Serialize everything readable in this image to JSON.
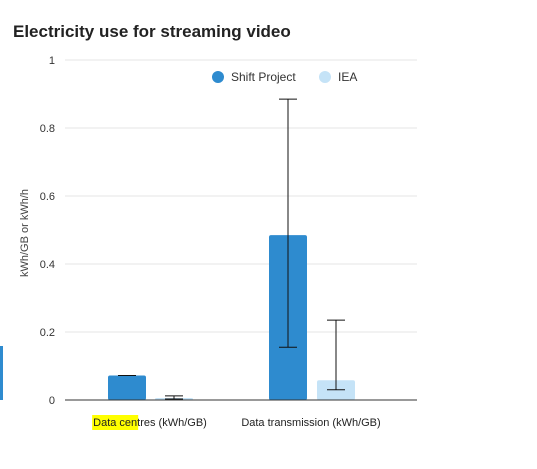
{
  "chart_data": {
    "type": "bar",
    "title": "Electricity use for streaming video",
    "xlabel": "",
    "ylabel": "kWh/GB or kWh/h",
    "ylim": [
      0,
      1
    ],
    "yticks": [
      "0",
      "0.2",
      "0.4",
      "0.6",
      "0.8",
      "1"
    ],
    "ytick_values": [
      0,
      0.2,
      0.4,
      0.6,
      0.8,
      1
    ],
    "grid": true,
    "legend_position": "top-right",
    "categories": [
      "Data centres (kWh/GB)",
      "Data transmission (kWh/GB)"
    ],
    "category_highlight": {
      "index": 0,
      "text": "Data cen",
      "color": "#ffff00"
    },
    "series": [
      {
        "name": "Shift Project",
        "color": "#2e8bcf",
        "values": [
          0.072,
          0.485
        ],
        "error_low": [
          0.072,
          0.155
        ],
        "error_high": [
          0.072,
          0.885
        ]
      },
      {
        "name": "IEA",
        "color": "#c5e3f7",
        "values": [
          0.006,
          0.058
        ],
        "error_low": [
          0.003,
          0.03
        ],
        "error_high": [
          0.012,
          0.235
        ]
      }
    ]
  }
}
